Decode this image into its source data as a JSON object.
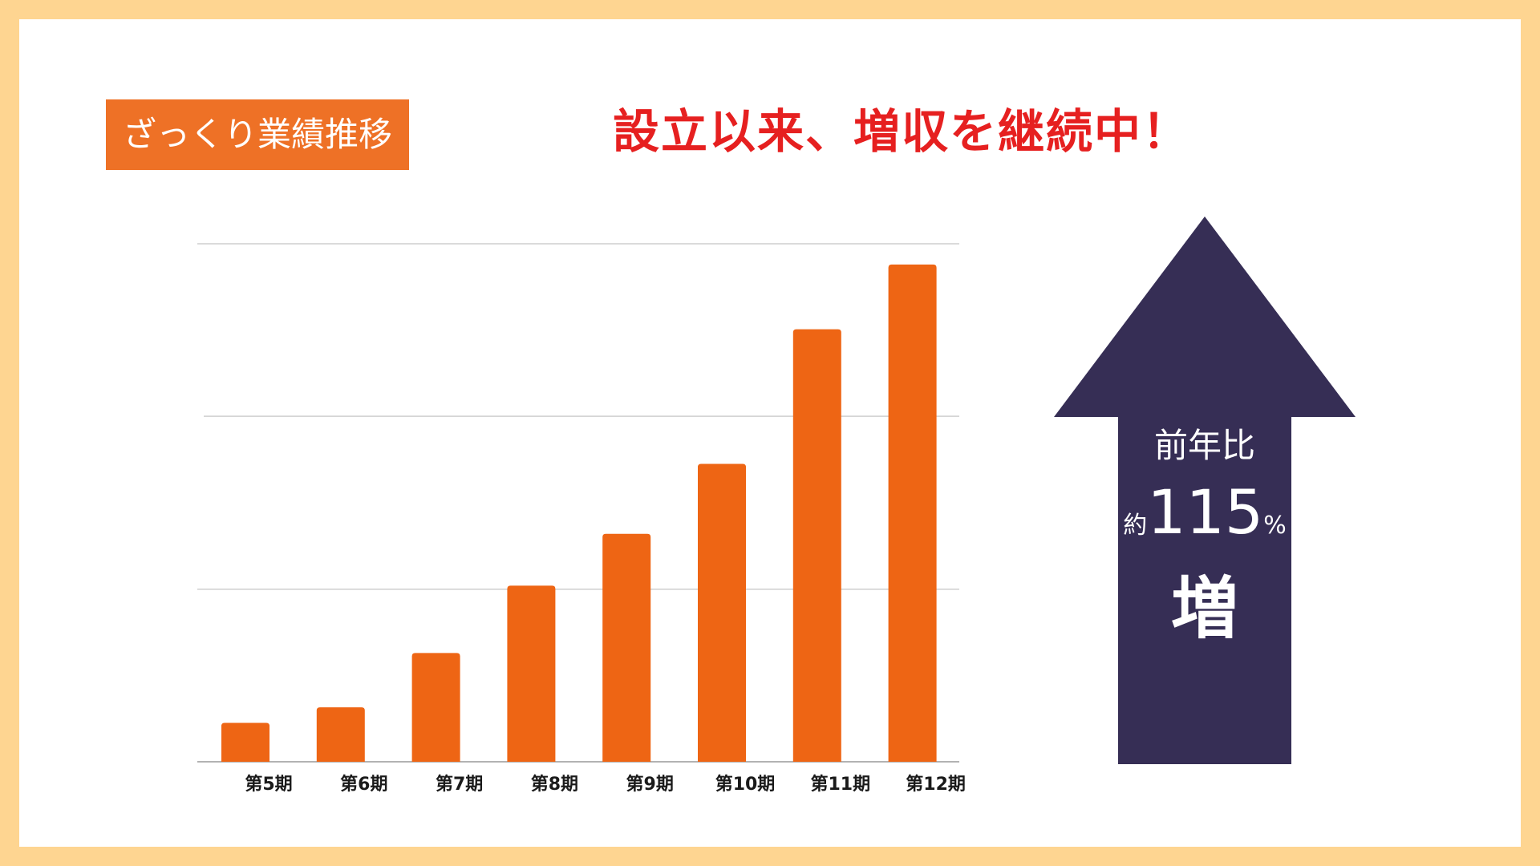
{
  "badge": "ざっくり業績推移",
  "headline": "設立以来、増収を継続中！",
  "colors": {
    "bar": "#ee6514",
    "arrow": "#362e55",
    "headline": "#e62020",
    "badge": "#ee7126",
    "border": "#fed591"
  },
  "arrow": {
    "line1": "前年比",
    "prefix": "約",
    "value": "115",
    "unit": "%",
    "line3": "増",
    "yoy_percent": 115
  },
  "chart_data": {
    "type": "bar",
    "categories": [
      "第5期",
      "第6期",
      "第7期",
      "第8期",
      "第9期",
      "第10期",
      "第11期",
      "第12期"
    ],
    "values": [
      0.75,
      1.05,
      2.1,
      3.4,
      4.4,
      5.75,
      8.35,
      9.6
    ],
    "ylim": [
      0,
      10
    ],
    "grid": true,
    "y_tick_labels_shown": false,
    "legend": "none"
  }
}
